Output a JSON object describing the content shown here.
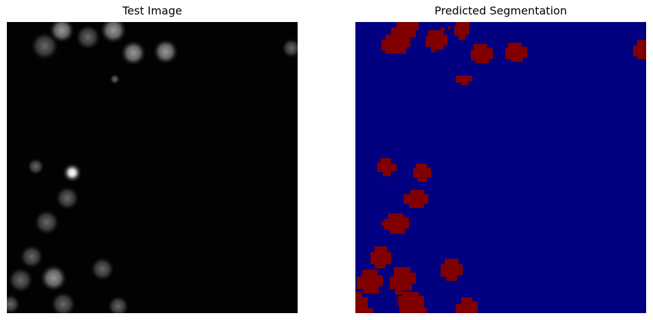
{
  "figure": {
    "left_title": "Test Image",
    "right_title": "Predicted Segmentation"
  },
  "colors": {
    "image_background": "#000000",
    "segmentation_background": "#000080",
    "segmentation_foreground": "#800000"
  }
}
